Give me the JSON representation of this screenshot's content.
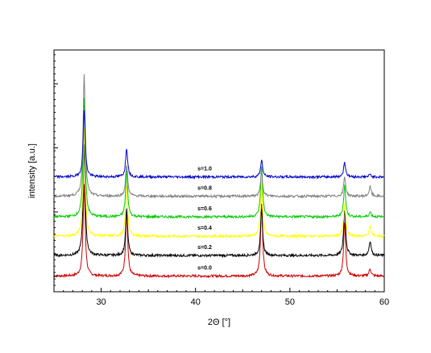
{
  "chart_data": {
    "type": "line",
    "xlabel": "2Θ [°]",
    "ylabel": "intensity [a.u.]",
    "xlim": [
      25,
      60
    ],
    "ylim": [
      0,
      100
    ],
    "x_ticks": [
      30,
      40,
      50,
      60
    ],
    "grid": false,
    "series_stacked": true,
    "peaks_2theta": [
      28.2,
      32.7,
      47.0,
      55.8,
      58.5
    ],
    "series": [
      {
        "name": "s=0.0",
        "color": "#cc0000",
        "baseline": 6.5,
        "peak_heights": [
          38,
          27,
          30,
          22,
          3
        ]
      },
      {
        "name": "s=0.2",
        "color": "#000000",
        "baseline": 15.0,
        "peak_heights": [
          46,
          19,
          19,
          19,
          6
        ]
      },
      {
        "name": "s=0.4",
        "color": "#ffff00",
        "baseline": 23.0,
        "peak_heights": [
          45,
          21,
          23,
          13,
          4
        ]
      },
      {
        "name": "s=0.6",
        "color": "#00cc00",
        "baseline": 31.0,
        "peak_heights": [
          49,
          19,
          21,
          13,
          2
        ]
      },
      {
        "name": "s=0.8",
        "color": "#808080",
        "baseline": 39.5,
        "peak_heights": [
          51,
          13,
          10,
          8,
          4
        ]
      },
      {
        "name": "s=1.0",
        "color": "#0000cc",
        "baseline": 47.5,
        "peak_heights": [
          28,
          12,
          7,
          6,
          1
        ]
      }
    ],
    "series_labels": [
      "s=1.0",
      "s=0.8",
      "s=0.6",
      "s=0.4",
      "s=0.2",
      "s=0.0"
    ]
  }
}
